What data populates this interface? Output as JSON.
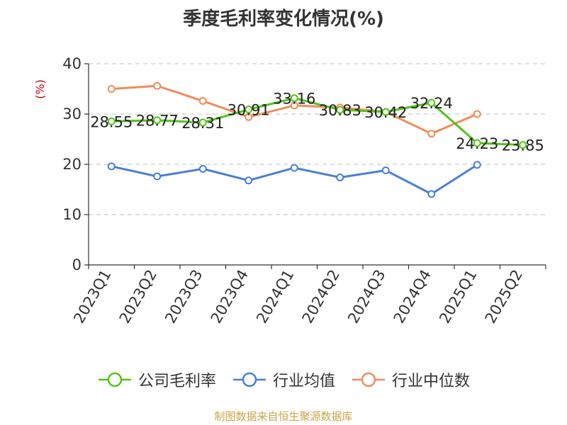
{
  "chart_data": {
    "type": "line",
    "title": "季度毛利率变化情况(%)",
    "ylabel": "(%)",
    "xlabel": "",
    "categories": [
      "2023Q1",
      "2023Q2",
      "2023Q3",
      "2023Q4",
      "2024Q1",
      "2024Q2",
      "2024Q3",
      "2024Q4",
      "2025Q1",
      "2025Q2"
    ],
    "ylim": [
      0,
      40
    ],
    "yticks": [
      0,
      10,
      20,
      30,
      40
    ],
    "grid": true,
    "legend_position": "bottom",
    "series": [
      {
        "name": "公司毛利率",
        "color": "#52c41a",
        "values": [
          28.55,
          28.77,
          28.31,
          30.91,
          33.16,
          30.83,
          30.42,
          32.24,
          24.23,
          23.85
        ],
        "labels": [
          "28.55",
          "28.77",
          "28.31",
          "30.91",
          "33.16",
          "30.83",
          "30.42",
          "32.24",
          "24.23",
          "23.85"
        ]
      },
      {
        "name": "行业均值",
        "color": "#4a7fd4",
        "values": [
          19.6,
          17.6,
          19.1,
          16.8,
          19.3,
          17.4,
          18.8,
          14.1,
          19.9,
          null
        ]
      },
      {
        "name": "行业中位数",
        "color": "#f08c5a",
        "values": [
          35.0,
          35.6,
          32.6,
          29.4,
          31.7,
          31.3,
          30.4,
          26.1,
          30.0,
          null
        ]
      }
    ]
  },
  "source_note": "制图数据来自恒生聚源数据库",
  "colors": {
    "axis": "#333333",
    "grid": "#cccccc",
    "ylabel": "#cc0000"
  }
}
